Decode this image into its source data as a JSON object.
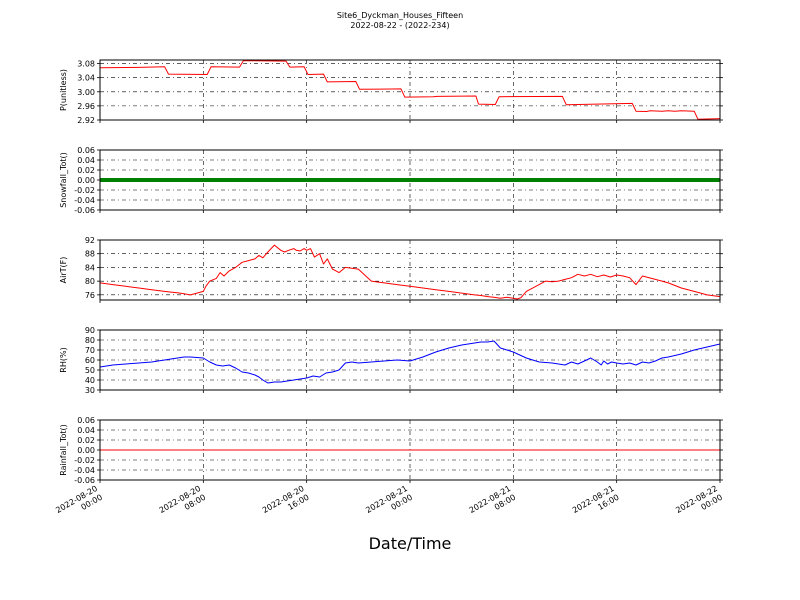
{
  "title": "Site6_Dyckman_Houses_Fifteen",
  "subtitle": "2022-08-22 - (2022-234)",
  "xlabel": "Date/Time",
  "x_ticks": [
    "2022-08-20\n00:00",
    "2022-08-20\n08:00",
    "2022-08-20\n16:00",
    "2022-08-21\n00:00",
    "2022-08-21\n08:00",
    "2022-08-21\n16:00",
    "2022-08-22\n00:00"
  ],
  "chart_data": [
    {
      "type": "line",
      "ylabel": "P(unitless)",
      "ylim": [
        2.92,
        3.09
      ],
      "yticks": [
        "3.08",
        "3.04",
        "3.00",
        "2.96",
        "2.92"
      ],
      "color": "#ff0000",
      "grid": true,
      "x_range_hours": [
        0,
        48
      ],
      "x": [
        0,
        3,
        5,
        5.3,
        8.3,
        8.6,
        10.8,
        11.1,
        14.4,
        14.7,
        15.8,
        16.1,
        17.3,
        17.6,
        19.8,
        20.1,
        23.3,
        23.6,
        25.8,
        26.1,
        29.1,
        29.3,
        30.6,
        30.9,
        35.8,
        36.1,
        41.2,
        41.5,
        42.3,
        42.6,
        43.5,
        44.0,
        44.5,
        45.0,
        46.0,
        46.3,
        48
      ],
      "y": [
        3.068,
        3.069,
        3.071,
        3.05,
        3.049,
        3.071,
        3.07,
        3.088,
        3.087,
        3.07,
        3.071,
        3.049,
        3.05,
        3.028,
        3.029,
        3.007,
        3.008,
        2.985,
        2.986,
        2.987,
        2.988,
        2.965,
        2.964,
        2.986,
        2.987,
        2.963,
        2.967,
        2.945,
        2.944,
        2.946,
        2.945,
        2.946,
        2.945,
        2.946,
        2.945,
        2.922,
        2.924
      ]
    },
    {
      "type": "line",
      "ylabel": "Snowfall_Tot()",
      "ylim": [
        -0.06,
        0.06
      ],
      "yticks": [
        "0.06",
        "0.04",
        "0.02",
        "0.00",
        "-0.02",
        "-0.04",
        "-0.06"
      ],
      "color": "#008000",
      "marker": "circle",
      "grid": true,
      "x_range_hours": [
        0,
        48
      ],
      "x": [
        0,
        48
      ],
      "y": [
        0.0,
        0.0
      ]
    },
    {
      "type": "line",
      "ylabel": "AirT(F)",
      "ylim": [
        74.5,
        92
      ],
      "yticks": [
        "92",
        "88",
        "84",
        "80",
        "76"
      ],
      "color": "#ff0000",
      "grid": true,
      "x_range_hours": [
        0,
        48
      ],
      "x": [
        0,
        1,
        2,
        3,
        4,
        5,
        5.5,
        6,
        6.5,
        7,
        7.5,
        8,
        8.2,
        8.5,
        9,
        9.3,
        9.6,
        10,
        10.5,
        11,
        11.5,
        12,
        12.3,
        12.6,
        13,
        13.5,
        14,
        14.3,
        14.6,
        15,
        15.2,
        15.5,
        15.8,
        16,
        16.3,
        16.6,
        17,
        17.3,
        17.6,
        18,
        18.5,
        19,
        20,
        21,
        22,
        23,
        24,
        25,
        26,
        27,
        28,
        29,
        29.5,
        30,
        30.5,
        31,
        31.5,
        32,
        32.3,
        32.6,
        33,
        34,
        34.5,
        35,
        35.5,
        36,
        36.5,
        37,
        37.5,
        38,
        38.5,
        39,
        39.5,
        40,
        40.5,
        41,
        41.5,
        42,
        43,
        44,
        45,
        46,
        47,
        48
      ],
      "y": [
        79.5,
        79,
        78.5,
        78,
        77.5,
        77,
        76.8,
        76.6,
        76.3,
        76,
        76.5,
        77,
        78.5,
        80,
        80.8,
        82.5,
        81.5,
        83,
        84,
        85.5,
        86,
        86.5,
        87.5,
        86.8,
        88.5,
        90.5,
        89,
        88.5,
        89,
        89.5,
        89,
        88.8,
        89.5,
        89,
        89.5,
        87,
        88,
        85,
        86.5,
        83.5,
        82.5,
        84,
        83.5,
        80,
        79.5,
        79,
        78.5,
        78,
        77.5,
        77,
        76.5,
        76,
        75.8,
        75.5,
        75.3,
        75,
        75.3,
        75,
        74.8,
        75.2,
        77,
        79,
        80,
        79.8,
        80,
        80.5,
        81,
        82,
        81.5,
        82,
        81.3,
        81.8,
        81.2,
        81.8,
        81.5,
        81,
        79,
        81.5,
        80.5,
        79.5,
        78,
        77,
        76,
        75.5
      ]
    },
    {
      "type": "line",
      "ylabel": "RH(%)",
      "ylim": [
        30,
        90
      ],
      "yticks": [
        "90",
        "80",
        "70",
        "60",
        "50",
        "40",
        "30"
      ],
      "color": "#0000ff",
      "grid": true,
      "x_range_hours": [
        0,
        48
      ],
      "x": [
        0,
        1,
        2,
        3,
        4,
        5,
        5.5,
        6,
        6.5,
        7,
        7.5,
        8,
        8.5,
        9,
        9.5,
        10,
        10.5,
        11,
        11.5,
        12,
        12.3,
        12.6,
        13,
        13.5,
        14,
        14.5,
        15,
        15.5,
        16,
        16.5,
        17,
        17.5,
        18,
        18.5,
        19,
        19.5,
        20,
        21,
        22,
        23,
        24,
        25,
        26,
        27,
        28,
        29,
        29.5,
        30,
        30.5,
        31,
        31.5,
        32,
        33,
        34,
        35,
        36,
        36.5,
        37,
        37.5,
        38,
        38.5,
        38.8,
        39,
        39.3,
        39.6,
        40,
        40.5,
        41,
        41.5,
        42,
        42.5,
        43,
        43.5,
        44,
        45,
        46,
        47,
        48
      ],
      "y": [
        53,
        55,
        56,
        57,
        58,
        60,
        61,
        62,
        63,
        63,
        62.5,
        62,
        58,
        55,
        54,
        55,
        52,
        48,
        47,
        45,
        43,
        40,
        37,
        38,
        38,
        39,
        40,
        41,
        42,
        44,
        43,
        47,
        48,
        50,
        57,
        58,
        57,
        58,
        59,
        60,
        59,
        63,
        68,
        72,
        75,
        77,
        78,
        78,
        79,
        72,
        70,
        68,
        62,
        58,
        57,
        55,
        58,
        56,
        59,
        62,
        58,
        55,
        59,
        56,
        58,
        57,
        56,
        57,
        55,
        58,
        57,
        59,
        62,
        63,
        66,
        70,
        73,
        76
      ]
    },
    {
      "type": "line",
      "ylabel": "Rainfall_Tot()",
      "ylim": [
        -0.06,
        0.06
      ],
      "yticks": [
        "0.06",
        "0.04",
        "0.02",
        "0.00",
        "-0.02",
        "-0.04",
        "-0.06"
      ],
      "color": "#ff0000",
      "grid": true,
      "x_range_hours": [
        0,
        48
      ],
      "x": [
        0,
        48
      ],
      "y": [
        0.0,
        0.0
      ]
    }
  ]
}
